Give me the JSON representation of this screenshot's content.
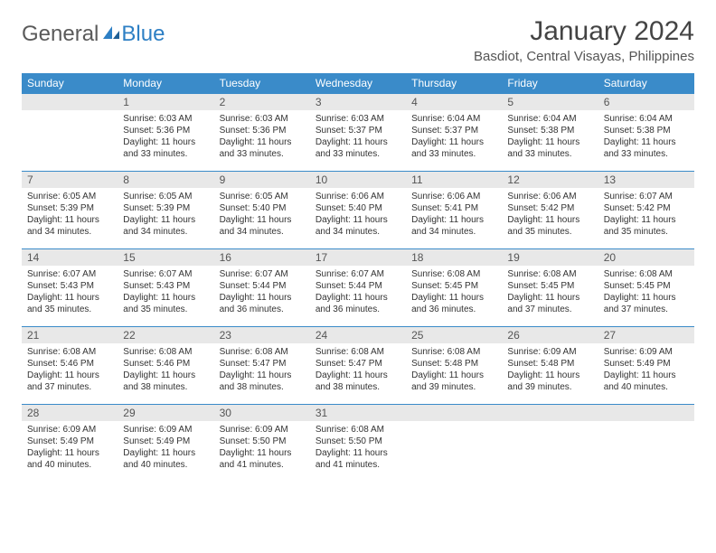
{
  "logo": {
    "text1": "General",
    "text2": "Blue"
  },
  "title": "January 2024",
  "location": "Basdiot, Central Visayas, Philippines",
  "colors": {
    "header_bg": "#3a8bc9",
    "header_fg": "#ffffff",
    "daynum_bg": "#e8e8e8",
    "border": "#3a8bc9",
    "logo_gray": "#5a5a5a",
    "logo_blue": "#2d7fc4"
  },
  "weekdays": [
    "Sunday",
    "Monday",
    "Tuesday",
    "Wednesday",
    "Thursday",
    "Friday",
    "Saturday"
  ],
  "start_offset": 1,
  "days": [
    {
      "n": "1",
      "sr": "6:03 AM",
      "ss": "5:36 PM",
      "dl": "11 hours and 33 minutes."
    },
    {
      "n": "2",
      "sr": "6:03 AM",
      "ss": "5:36 PM",
      "dl": "11 hours and 33 minutes."
    },
    {
      "n": "3",
      "sr": "6:03 AM",
      "ss": "5:37 PM",
      "dl": "11 hours and 33 minutes."
    },
    {
      "n": "4",
      "sr": "6:04 AM",
      "ss": "5:37 PM",
      "dl": "11 hours and 33 minutes."
    },
    {
      "n": "5",
      "sr": "6:04 AM",
      "ss": "5:38 PM",
      "dl": "11 hours and 33 minutes."
    },
    {
      "n": "6",
      "sr": "6:04 AM",
      "ss": "5:38 PM",
      "dl": "11 hours and 33 minutes."
    },
    {
      "n": "7",
      "sr": "6:05 AM",
      "ss": "5:39 PM",
      "dl": "11 hours and 34 minutes."
    },
    {
      "n": "8",
      "sr": "6:05 AM",
      "ss": "5:39 PM",
      "dl": "11 hours and 34 minutes."
    },
    {
      "n": "9",
      "sr": "6:05 AM",
      "ss": "5:40 PM",
      "dl": "11 hours and 34 minutes."
    },
    {
      "n": "10",
      "sr": "6:06 AM",
      "ss": "5:40 PM",
      "dl": "11 hours and 34 minutes."
    },
    {
      "n": "11",
      "sr": "6:06 AM",
      "ss": "5:41 PM",
      "dl": "11 hours and 34 minutes."
    },
    {
      "n": "12",
      "sr": "6:06 AM",
      "ss": "5:42 PM",
      "dl": "11 hours and 35 minutes."
    },
    {
      "n": "13",
      "sr": "6:07 AM",
      "ss": "5:42 PM",
      "dl": "11 hours and 35 minutes."
    },
    {
      "n": "14",
      "sr": "6:07 AM",
      "ss": "5:43 PM",
      "dl": "11 hours and 35 minutes."
    },
    {
      "n": "15",
      "sr": "6:07 AM",
      "ss": "5:43 PM",
      "dl": "11 hours and 35 minutes."
    },
    {
      "n": "16",
      "sr": "6:07 AM",
      "ss": "5:44 PM",
      "dl": "11 hours and 36 minutes."
    },
    {
      "n": "17",
      "sr": "6:07 AM",
      "ss": "5:44 PM",
      "dl": "11 hours and 36 minutes."
    },
    {
      "n": "18",
      "sr": "6:08 AM",
      "ss": "5:45 PM",
      "dl": "11 hours and 36 minutes."
    },
    {
      "n": "19",
      "sr": "6:08 AM",
      "ss": "5:45 PM",
      "dl": "11 hours and 37 minutes."
    },
    {
      "n": "20",
      "sr": "6:08 AM",
      "ss": "5:45 PM",
      "dl": "11 hours and 37 minutes."
    },
    {
      "n": "21",
      "sr": "6:08 AM",
      "ss": "5:46 PM",
      "dl": "11 hours and 37 minutes."
    },
    {
      "n": "22",
      "sr": "6:08 AM",
      "ss": "5:46 PM",
      "dl": "11 hours and 38 minutes."
    },
    {
      "n": "23",
      "sr": "6:08 AM",
      "ss": "5:47 PM",
      "dl": "11 hours and 38 minutes."
    },
    {
      "n": "24",
      "sr": "6:08 AM",
      "ss": "5:47 PM",
      "dl": "11 hours and 38 minutes."
    },
    {
      "n": "25",
      "sr": "6:08 AM",
      "ss": "5:48 PM",
      "dl": "11 hours and 39 minutes."
    },
    {
      "n": "26",
      "sr": "6:09 AM",
      "ss": "5:48 PM",
      "dl": "11 hours and 39 minutes."
    },
    {
      "n": "27",
      "sr": "6:09 AM",
      "ss": "5:49 PM",
      "dl": "11 hours and 40 minutes."
    },
    {
      "n": "28",
      "sr": "6:09 AM",
      "ss": "5:49 PM",
      "dl": "11 hours and 40 minutes."
    },
    {
      "n": "29",
      "sr": "6:09 AM",
      "ss": "5:49 PM",
      "dl": "11 hours and 40 minutes."
    },
    {
      "n": "30",
      "sr": "6:09 AM",
      "ss": "5:50 PM",
      "dl": "11 hours and 41 minutes."
    },
    {
      "n": "31",
      "sr": "6:08 AM",
      "ss": "5:50 PM",
      "dl": "11 hours and 41 minutes."
    }
  ],
  "labels": {
    "sunrise": "Sunrise:",
    "sunset": "Sunset:",
    "daylight": "Daylight:"
  }
}
